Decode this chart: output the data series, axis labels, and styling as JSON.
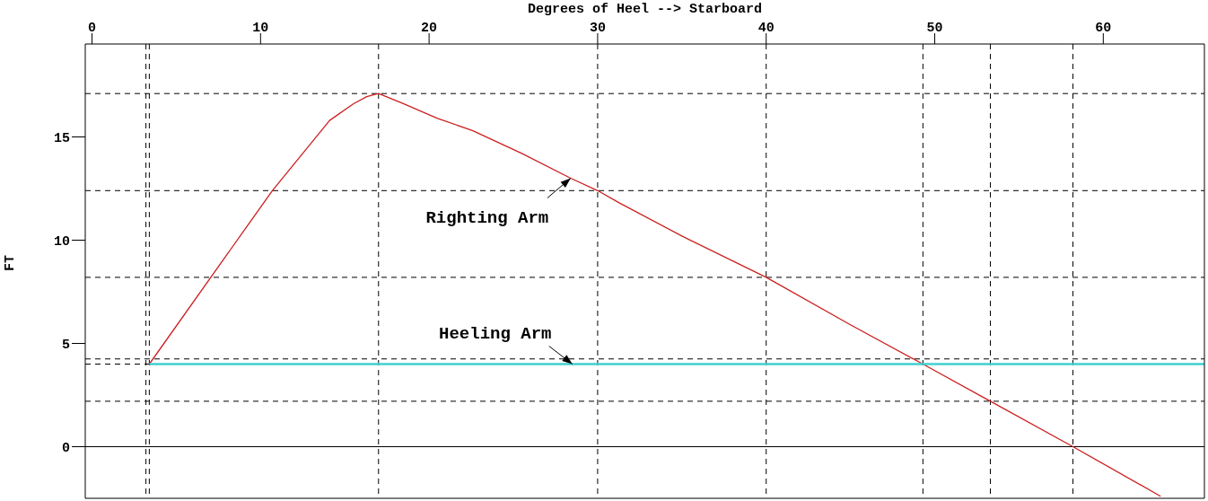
{
  "chart_data": {
    "type": "line",
    "xlabel": "Degrees of Heel --> Starboard",
    "ylabel": "FT",
    "series": [
      {
        "color": "#cc1f1f",
        "x": [
          3.4,
          10.7,
          14.1,
          15.5,
          16.3,
          17.0,
          18.5,
          20.5,
          22.6,
          25.5,
          28.4,
          30.0,
          31.3,
          35,
          40,
          45,
          49.3,
          53.3,
          58.2,
          63.4
        ],
        "values": [
          4.0,
          12.4,
          15.8,
          16.6,
          16.95,
          17.1,
          16.6,
          15.9,
          15.3,
          14.2,
          13.0,
          12.4,
          11.8,
          10.2,
          8.2,
          5.9,
          4.0,
          2.2,
          0,
          -2.4
        ]
      },
      {
        "color": "#40d0d0",
        "x": [
          3.4,
          66
        ],
        "values": [
          4.0,
          4.0
        ]
      }
    ],
    "xlim": [
      -0.4,
      66
    ],
    "xticks": [
      0,
      10,
      20,
      30,
      40,
      50,
      60
    ],
    "ylim": [
      -2.5,
      19.5
    ],
    "yticks": [
      0,
      5,
      10,
      15
    ],
    "ref_lines": [
      {
        "axis": "y",
        "value": 17.1,
        "line_style": "dashed"
      },
      {
        "axis": "y",
        "value": 12.4,
        "line_style": "dashed"
      },
      {
        "axis": "y",
        "value": 8.2,
        "line_style": "dashed"
      },
      {
        "axis": "y",
        "value": 4.25,
        "line_style": "dashed"
      },
      {
        "axis": "y",
        "value": 4.0,
        "line_style": "dashed"
      },
      {
        "axis": "y",
        "value": 2.2,
        "line_style": "dashed"
      },
      {
        "axis": "y",
        "value": 0,
        "line_style": "solid"
      },
      {
        "axis": "x",
        "value": 3.2,
        "line_style": "dashed"
      },
      {
        "axis": "x",
        "value": 3.4,
        "line_style": "dashed"
      },
      {
        "axis": "x",
        "value": 17.0,
        "line_style": "dashed"
      },
      {
        "axis": "x",
        "value": 30,
        "line_style": "dashed"
      },
      {
        "axis": "x",
        "value": 40,
        "line_style": "dashed"
      },
      {
        "axis": "x",
        "value": 49.3,
        "line_style": "dashed"
      },
      {
        "axis": "x",
        "value": 53.3,
        "line_style": "dashed"
      },
      {
        "axis": "x",
        "value": 58.2,
        "line_style": "dashed"
      }
    ],
    "annotations": [
      {
        "text": "Righting Arm",
        "x": 28.4,
        "y": 13.0
      },
      {
        "text": "Heeling Arm",
        "x": 28.5,
        "y": 4.0
      }
    ],
    "legend": false,
    "marker": "none",
    "line_style": "solid"
  }
}
